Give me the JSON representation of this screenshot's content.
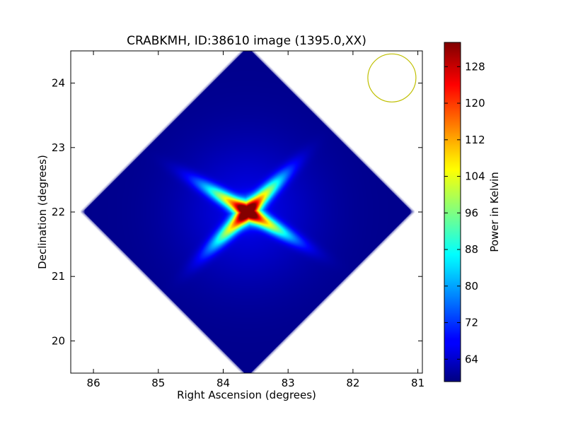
{
  "chart_data": {
    "type": "heatmap",
    "title": "CRABKMH, ID:38610 image (1395.0,XX)",
    "xlabel": "Right Ascension (degrees)",
    "ylabel": "Declination (degrees)",
    "xlim": [
      86.35,
      80.93
    ],
    "ylim": [
      19.5,
      24.5
    ],
    "x_axis_inverted": true,
    "x_ticks": [
      86,
      85,
      84,
      83,
      82,
      81
    ],
    "y_ticks": [
      20,
      21,
      22,
      23,
      24
    ],
    "colorbar": {
      "label": "Power in Kelvin",
      "colormap": "jet",
      "range": [
        59.1,
        133.3
      ],
      "ticks": [
        64,
        72,
        80,
        88,
        96,
        104,
        112,
        120,
        128
      ]
    },
    "source_center": {
      "ra": 83.63,
      "dec": 22.01
    },
    "source_peak_kelvin": 133,
    "background_kelvin": 60,
    "beam_marker": {
      "ra": 81.4,
      "dec": 24.08,
      "color": "#bfbf00"
    },
    "coverage": "rotated square footprint centered at RA 83.63, Dec 22.0",
    "grid": false
  }
}
